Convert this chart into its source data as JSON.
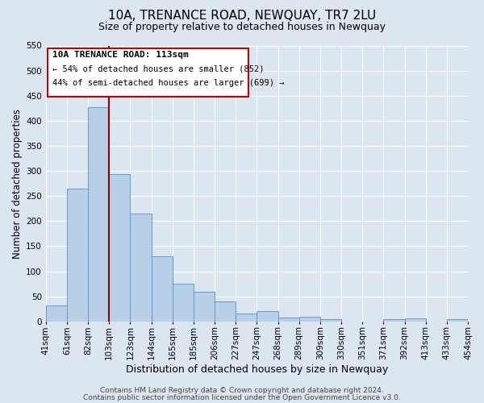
{
  "title": "10A, TRENANCE ROAD, NEWQUAY, TR7 2LU",
  "subtitle": "Size of property relative to detached houses in Newquay",
  "xlabel": "Distribution of detached houses by size in Newquay",
  "ylabel": "Number of detached properties",
  "bar_labels": [
    "41sqm",
    "61sqm",
    "82sqm",
    "103sqm",
    "123sqm",
    "144sqm",
    "165sqm",
    "185sqm",
    "206sqm",
    "227sqm",
    "247sqm",
    "268sqm",
    "289sqm",
    "309sqm",
    "330sqm",
    "351sqm",
    "371sqm",
    "392sqm",
    "413sqm",
    "433sqm",
    "454sqm"
  ],
  "bar_values": [
    32,
    265,
    427,
    293,
    215,
    129,
    75,
    59,
    40,
    15,
    20,
    7,
    10,
    4,
    0,
    0,
    5,
    6,
    0,
    5
  ],
  "bar_color": "#b8cfe8",
  "bar_edge_color": "#6699cc",
  "vline_x_index": 3,
  "vline_color": "#8b0000",
  "ylim": [
    0,
    550
  ],
  "yticks": [
    0,
    50,
    100,
    150,
    200,
    250,
    300,
    350,
    400,
    450,
    500,
    550
  ],
  "annotation_title": "10A TRENANCE ROAD: 113sqm",
  "annotation_line1": "← 54% of detached houses are smaller (852)",
  "annotation_line2": "44% of semi-detached houses are larger (699) →",
  "annotation_box_color": "#ffffff",
  "annotation_box_edge": "#cc0000",
  "footer1": "Contains HM Land Registry data © Crown copyright and database right 2024.",
  "footer2": "Contains public sector information licensed under the Open Government Licence v3.0.",
  "bg_color": "#dce6f0",
  "plot_bg_color": "#dce6f0",
  "grid_color": "#ffffff",
  "title_fontsize": 11,
  "subtitle_fontsize": 9,
  "xlabel_fontsize": 9,
  "ylabel_fontsize": 8.5,
  "tick_fontsize": 7.5,
  "footer_fontsize": 6.5
}
